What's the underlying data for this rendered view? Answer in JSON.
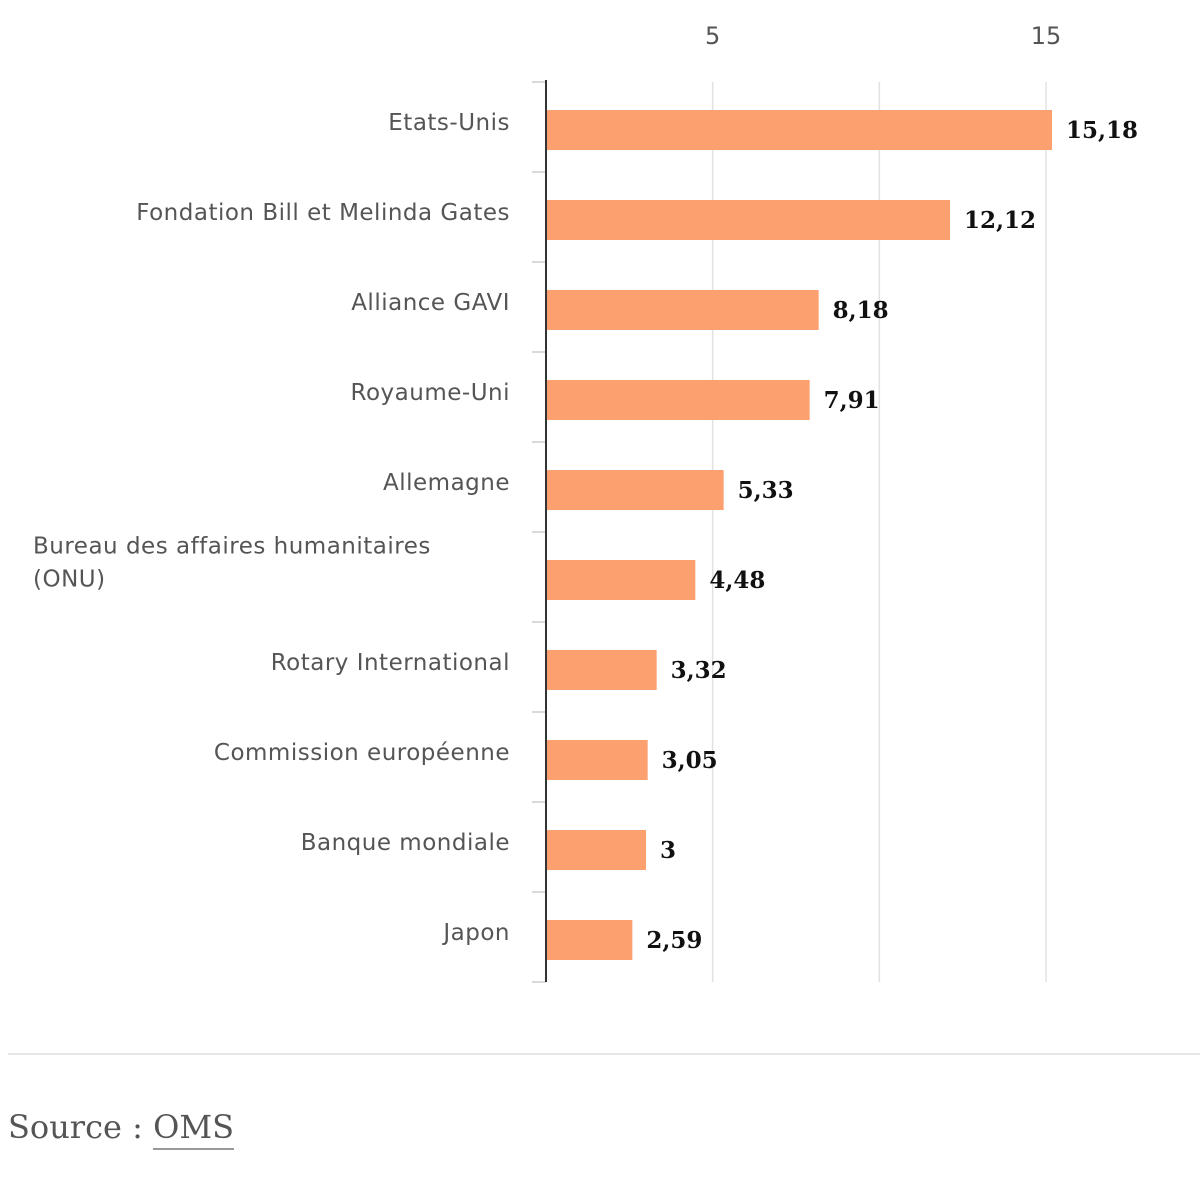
{
  "chart_data": {
    "type": "bar",
    "orientation": "horizontal",
    "categories": [
      "Etats-Unis",
      "Fondation Bill et Melinda Gates",
      "Alliance GAVI",
      "Royaume-Uni",
      "Allemagne",
      "Bureau des affaires humanitaires (ONU)",
      "Rotary International",
      "Commission européenne",
      "Banque mondiale",
      "Japon"
    ],
    "category_lines": [
      [
        "Etats-Unis"
      ],
      [
        "Fondation Bill et Melinda Gates"
      ],
      [
        "Alliance GAVI"
      ],
      [
        "Royaume-Uni"
      ],
      [
        "Allemagne"
      ],
      [
        "Bureau des affaires humanitaires",
        "(ONU)"
      ],
      [
        "Rotary International"
      ],
      [
        "Commission européenne"
      ],
      [
        "Banque mondiale"
      ],
      [
        "Japon"
      ]
    ],
    "values": [
      15.18,
      12.12,
      8.18,
      7.91,
      5.33,
      4.48,
      3.32,
      3.05,
      3,
      2.59
    ],
    "value_labels": [
      "15,18",
      "12,12",
      "8,18",
      "7,91",
      "5,33",
      "4,48",
      "3,32",
      "3,05",
      "3",
      "2,59"
    ],
    "x_ticks": [
      0,
      5,
      10,
      15
    ],
    "x_tick_labels": [
      "",
      "5",
      "",
      "15"
    ],
    "xlim": [
      0,
      15
    ],
    "grid": true,
    "title": "",
    "xlabel": "",
    "ylabel": "",
    "bar_color": "#FDA070"
  },
  "footer": {
    "source_prefix": "Source : ",
    "source_name": "OMS"
  }
}
